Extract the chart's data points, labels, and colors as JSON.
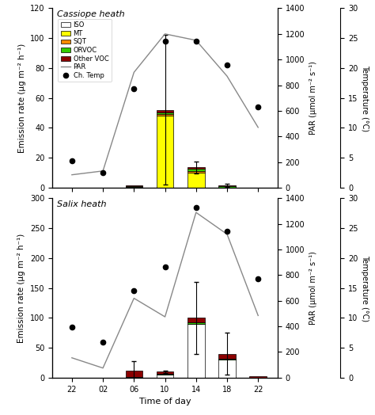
{
  "panel1_title": "Cassiope heath",
  "panel2_title": "Salix heath",
  "xlabel": "Time of day",
  "ylabel": "Emission rate (μg m⁻² h⁻¹)",
  "ylabel_par": "PAR (μmol m⁻² s⁻¹)",
  "ylabel_temp": "Temperature (°C)",
  "bar_colors_iso": "#ffffff",
  "bar_colors_mt": "#ffff00",
  "bar_colors_sqt": "#ff8c00",
  "bar_colors_orvoc": "#33cc00",
  "bar_colors_othervoc": "#8b0000",
  "par_color": "#888888",
  "xtick_positions": [
    22,
    26,
    30,
    34,
    38,
    42,
    46
  ],
  "xtick_labels": [
    "22",
    "02",
    "06",
    "10",
    "14",
    "18",
    "22"
  ],
  "cassiope_bar_x": [
    22,
    26,
    30,
    34,
    38,
    42,
    46
  ],
  "cassiope_iso_vals": [
    0,
    0,
    0.2,
    0,
    0,
    0,
    0
  ],
  "cassiope_mt_vals": [
    0,
    0,
    0.3,
    48,
    10,
    0,
    0
  ],
  "cassiope_sqt_vals": [
    0,
    0,
    0.2,
    1.0,
    1.0,
    0,
    0
  ],
  "cassiope_orvoc_vals": [
    0,
    0,
    0.5,
    1.5,
    1.5,
    0.8,
    0
  ],
  "cassiope_othervoc_vals": [
    0,
    0,
    0.5,
    1.5,
    1.0,
    0.8,
    0
  ],
  "cassiope_err_top": [
    0,
    0,
    0,
    50,
    4,
    1.0,
    0
  ],
  "cassiope_par_x": [
    22,
    26,
    30,
    34,
    38,
    42,
    46
  ],
  "cassiope_par_y": [
    100,
    130,
    900,
    1200,
    1150,
    870,
    470
  ],
  "cassiope_temp_x": [
    22,
    26,
    30,
    34,
    38,
    42,
    46
  ],
  "cassiope_temp_y": [
    4.5,
    2.5,
    16.5,
    24.5,
    24.5,
    20.5,
    13.5
  ],
  "cassiope_ylim": [
    0,
    120
  ],
  "cassiope_yticks": [
    0,
    20,
    40,
    60,
    80,
    100,
    120
  ],
  "cassiope_par_ylim": [
    0,
    1400
  ],
  "cassiope_par_yticks": [
    0,
    200,
    400,
    600,
    800,
    1000,
    1200,
    1400
  ],
  "cassiope_temp_ylim": [
    0,
    30
  ],
  "cassiope_temp_yticks": [
    0,
    5,
    10,
    15,
    20,
    25,
    30
  ],
  "salix_bar_x": [
    22,
    26,
    30,
    34,
    38,
    42,
    46
  ],
  "salix_iso_vals": [
    0,
    0,
    0,
    5,
    90,
    30,
    0
  ],
  "salix_mt_vals": [
    0,
    0,
    0,
    0,
    0,
    0,
    0
  ],
  "salix_sqt_vals": [
    0,
    0,
    0,
    0,
    0,
    0,
    0
  ],
  "salix_orvoc_vals": [
    0,
    0,
    1,
    1,
    2,
    2,
    0
  ],
  "salix_othervoc_vals": [
    0,
    0,
    11,
    4,
    8,
    8,
    2
  ],
  "salix_err_top": [
    0,
    0,
    15,
    2,
    60,
    35,
    0
  ],
  "salix_par_x": [
    22,
    26,
    30,
    34,
    38,
    42,
    46
  ],
  "salix_par_y": [
    155,
    75,
    620,
    475,
    1290,
    1120,
    485
  ],
  "salix_temp_x": [
    22,
    26,
    30,
    34,
    38,
    42,
    46
  ],
  "salix_temp_y": [
    8.5,
    6.0,
    14.5,
    18.5,
    28.5,
    24.5,
    16.5
  ],
  "salix_ylim": [
    0,
    300
  ],
  "salix_yticks": [
    0,
    50,
    100,
    150,
    200,
    250,
    300
  ],
  "salix_par_ylim": [
    0,
    1400
  ],
  "salix_par_yticks": [
    0,
    200,
    400,
    600,
    800,
    1000,
    1200,
    1400
  ],
  "salix_temp_ylim": [
    0,
    30
  ],
  "salix_temp_yticks": [
    0,
    5,
    10,
    15,
    20,
    25,
    30
  ],
  "bar_width": 2.2
}
